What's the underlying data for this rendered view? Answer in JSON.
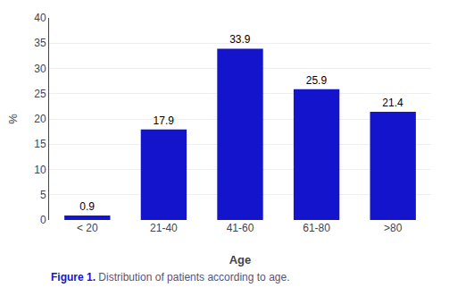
{
  "chart_data": {
    "type": "bar",
    "categories": [
      "< 20",
      "21-40",
      "41-60",
      "61-80",
      ">80"
    ],
    "values": [
      0.9,
      17.9,
      33.9,
      25.9,
      21.4
    ],
    "color": "#1414CC",
    "xlabel": "Age",
    "ylabel": "%",
    "ylim": [
      0,
      40
    ],
    "yticks": [
      0,
      5,
      10,
      15,
      20,
      25,
      30,
      35,
      40
    ],
    "grid": true,
    "data_labels": true,
    "annotations": [
      {
        "text": "Figure 1.",
        "color": "#1414CC"
      },
      {
        "text": "Distribution of patients according to age.",
        "color": "#555577"
      }
    ]
  }
}
